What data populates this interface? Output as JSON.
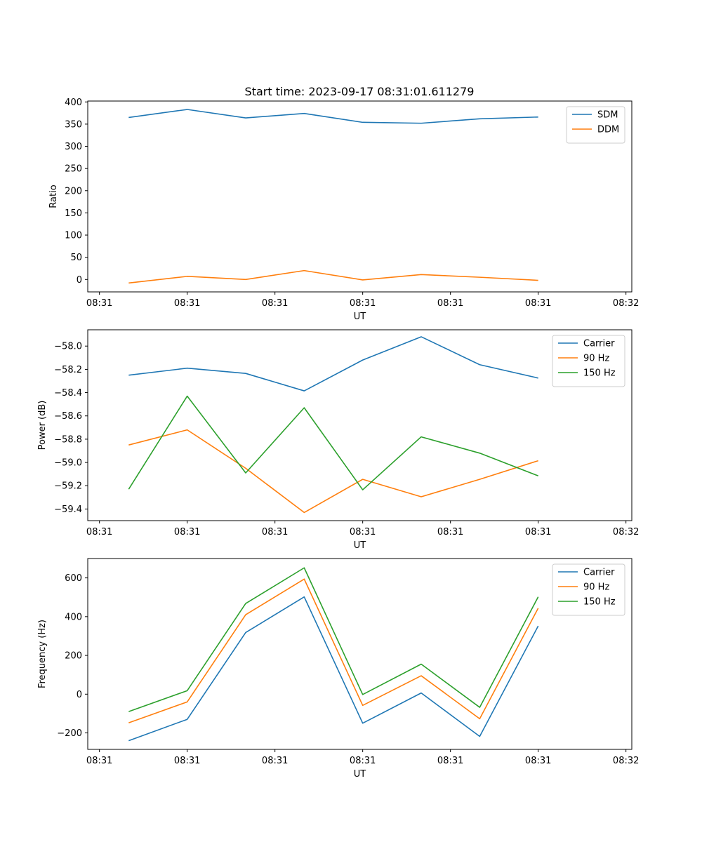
{
  "title": "Start time: 2023-09-17 08:31:01.611279",
  "colors": {
    "blue": "#1f77b4",
    "orange": "#ff7f0e",
    "green": "#2ca02c"
  },
  "chart_data": [
    {
      "type": "line",
      "title": "Start time: 2023-09-17 08:31:01.611279",
      "xlabel": "UT",
      "ylabel": "Ratio",
      "xlim": [
        -0.7,
        8.6
      ],
      "x": [
        0,
        1,
        2,
        3,
        4,
        5,
        6,
        7
      ],
      "xticks": [
        -0.5,
        1,
        2.5,
        4,
        5.5,
        7,
        8.5
      ],
      "xtick_labels": [
        "08:31",
        "08:31",
        "08:31",
        "08:31",
        "08:31",
        "08:31",
        "08:32"
      ],
      "ylim": [
        -28,
        402
      ],
      "yticks": [
        0,
        50,
        100,
        150,
        200,
        250,
        300,
        350,
        400
      ],
      "ytick_labels": [
        "0",
        "50",
        "100",
        "150",
        "200",
        "250",
        "300",
        "350",
        "400"
      ],
      "legend_position": "top-right",
      "series": [
        {
          "name": "SDM",
          "color": "#1f77b4",
          "values": [
            365,
            383,
            364,
            374,
            354,
            352,
            362,
            366
          ]
        },
        {
          "name": "DDM",
          "color": "#ff7f0e",
          "values": [
            -8,
            7,
            0,
            20,
            -1,
            11,
            5,
            -2
          ]
        }
      ]
    },
    {
      "type": "line",
      "xlabel": "UT",
      "ylabel": "Power (dB)",
      "xlim": [
        -0.7,
        8.6
      ],
      "x": [
        0,
        1,
        2,
        3,
        4,
        5,
        6,
        7
      ],
      "xticks": [
        -0.5,
        1,
        2.5,
        4,
        5.5,
        7,
        8.5
      ],
      "xtick_labels": [
        "08:31",
        "08:31",
        "08:31",
        "08:31",
        "08:31",
        "08:31",
        "08:32"
      ],
      "ylim": [
        -59.5,
        -57.86
      ],
      "yticks": [
        -59.4,
        -59.2,
        -59.0,
        -58.8,
        -58.6,
        -58.4,
        -58.2,
        -58.0
      ],
      "ytick_labels": [
        "−59.4",
        "−59.2",
        "−59.0",
        "−58.8",
        "−58.6",
        "−58.4",
        "−58.2",
        "−58.0"
      ],
      "legend_position": "top-right",
      "series": [
        {
          "name": "Carrier",
          "color": "#1f77b4",
          "values": [
            -58.25,
            -58.19,
            -58.235,
            -58.385,
            -58.12,
            -57.92,
            -58.16,
            -58.275
          ]
        },
        {
          "name": "90 Hz",
          "color": "#ff7f0e",
          "values": [
            -58.85,
            -58.72,
            -59.05,
            -59.43,
            -59.145,
            -59.295,
            -59.145,
            -58.985
          ]
        },
        {
          "name": "150 Hz",
          "color": "#2ca02c",
          "values": [
            -59.23,
            -58.43,
            -59.09,
            -58.53,
            -59.235,
            -58.78,
            -58.92,
            -59.115
          ]
        }
      ]
    },
    {
      "type": "line",
      "xlabel": "UT",
      "ylabel": "Frequency (Hz)",
      "xlim": [
        -0.7,
        8.6
      ],
      "x": [
        0,
        1,
        2,
        3,
        4,
        5,
        6,
        7
      ],
      "xticks": [
        -0.5,
        1,
        2.5,
        4,
        5.5,
        7,
        8.5
      ],
      "xtick_labels": [
        "08:31",
        "08:31",
        "08:31",
        "08:31",
        "08:31",
        "08:31",
        "08:32"
      ],
      "ylim": [
        -285,
        700
      ],
      "yticks": [
        -200,
        0,
        200,
        400,
        600
      ],
      "ytick_labels": [
        "−200",
        "0",
        "200",
        "400",
        "600"
      ],
      "legend_position": "top-right",
      "series": [
        {
          "name": "Carrier",
          "color": "#1f77b4",
          "values": [
            -240,
            -130,
            318,
            502,
            -150,
            6,
            -218,
            352
          ]
        },
        {
          "name": "90 Hz",
          "color": "#ff7f0e",
          "values": [
            -148,
            -40,
            410,
            594,
            -58,
            95,
            -127,
            444
          ]
        },
        {
          "name": "150 Hz",
          "color": "#2ca02c",
          "values": [
            -90,
            18,
            468,
            652,
            -2,
            155,
            -68,
            502
          ]
        }
      ]
    }
  ]
}
